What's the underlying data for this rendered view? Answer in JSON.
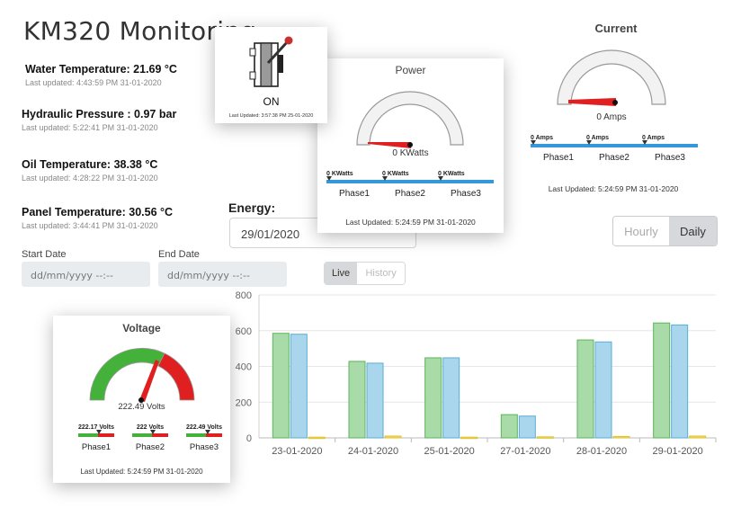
{
  "app": {
    "title": "KM320 Monitoring"
  },
  "readings": [
    {
      "label": "Water Temperature: 21.69 °C",
      "updated": "Last updated: 4:43:59 PM 31-01-2020"
    },
    {
      "label": "Hydraulic Pressure : 0.97 bar",
      "updated": "Last updated: 5:22:41 PM 31-01-2020"
    },
    {
      "label": "Oil Temperature: 38.38 °C",
      "updated": "Last updated: 4:28:22 PM 31-01-2020"
    },
    {
      "label": "Panel Temperature: 30.56 °C",
      "updated": "Last updated: 3:44:41 PM 31-01-2020"
    }
  ],
  "switch_card": {
    "state": "ON",
    "updated": "Last Updated: 3:57:38 PM 25-01-2020",
    "icon": "toggle-switch-icon"
  },
  "power": {
    "title": "Power",
    "value": "0 KWatts",
    "phases": [
      {
        "name": "Phase1",
        "value": "0 KWatts"
      },
      {
        "name": "Phase2",
        "value": "0 KWatts"
      },
      {
        "name": "Phase3",
        "value": "0 KWatts"
      }
    ],
    "updated": "Last Updated: 5:24:59 PM 31-01-2020"
  },
  "current": {
    "title": "Current",
    "value": "0 Amps",
    "phases": [
      {
        "name": "Phase1",
        "value": "0 Amps"
      },
      {
        "name": "Phase2",
        "value": "0 Amps"
      },
      {
        "name": "Phase3",
        "value": "0 Amps"
      }
    ],
    "updated": "Last Updated: 5:24:59 PM 31-01-2020"
  },
  "voltage": {
    "title": "Voltage",
    "value": "222.49 Volts",
    "phases": [
      {
        "name": "Phase1",
        "value": "222.17 Volts"
      },
      {
        "name": "Phase2",
        "value": "222 Volts"
      },
      {
        "name": "Phase3",
        "value": "222.49 Volts"
      }
    ],
    "updated": "Last Updated: 5:24:59 PM 31-01-2020"
  },
  "energy": {
    "label": "Energy:",
    "date": "29/01/2020"
  },
  "range_toggle": {
    "hourly": "Hourly",
    "daily": "Daily",
    "active": "daily"
  },
  "filters": {
    "start_label": "Start Date",
    "start_placeholder": "dd/mm/yyyy --:--",
    "end_label": "End Date",
    "end_placeholder": "dd/mm/yyyy --:--",
    "live": "Live",
    "history": "History",
    "active": "live"
  },
  "colors": {
    "bar_green": "#a8dba8",
    "bar_blue": "#a9d6ec",
    "bar_yellow": "#f2dc5d",
    "gauge_red": "#e02020",
    "gauge_green": "#44b23a",
    "phase_bar": "#3498db"
  },
  "chart_data": {
    "type": "bar",
    "categories": [
      "23-01-2020",
      "24-01-2020",
      "25-01-2020",
      "27-01-2020",
      "28-01-2020",
      "29-01-2020"
    ],
    "series": [
      {
        "values": [
          585,
          428,
          448,
          130,
          548,
          643
        ]
      },
      {
        "values": [
          580,
          418,
          448,
          122,
          537,
          632
        ]
      },
      {
        "values": [
          4,
          10,
          4,
          6,
          8,
          10
        ]
      }
    ],
    "yticks": [
      "0",
      "200",
      "400",
      "600",
      "800"
    ],
    "ylim": [
      0,
      800
    ],
    "grid": true
  }
}
